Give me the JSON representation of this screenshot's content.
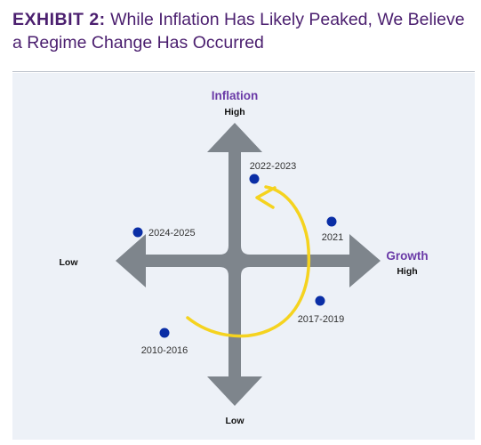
{
  "header": {
    "exhibit_label": "EXHIBIT 2:",
    "title_line1": "While Inflation Has Likely Peaked, We Believe",
    "title_line2": "a Regime Change Has Occurred"
  },
  "diagram": {
    "vertical_axis": {
      "title": "Inflation",
      "high_label": "High",
      "low_label": "Low"
    },
    "horizontal_axis": {
      "title": "Growth",
      "high_label": "High",
      "low_label": "Low"
    },
    "points": [
      {
        "label": "2022-2023",
        "quadrant": "low-growth / high-inflation"
      },
      {
        "label": "2021",
        "quadrant": "high-growth / high-inflation"
      },
      {
        "label": "2024-2025",
        "quadrant": "low-growth / high-inflation"
      },
      {
        "label": "2017-2019",
        "quadrant": "high-growth / low-inflation"
      },
      {
        "label": "2010-2016",
        "quadrant": "low-growth / low-inflation"
      }
    ],
    "colors": {
      "arrows": "#7e858c",
      "points": "#0a2ea6",
      "regime_arc": "#f5d31f",
      "title": "#4b1f6f",
      "axis_title": "#6a3aa7",
      "panel_bg": "#edf1f7"
    }
  }
}
